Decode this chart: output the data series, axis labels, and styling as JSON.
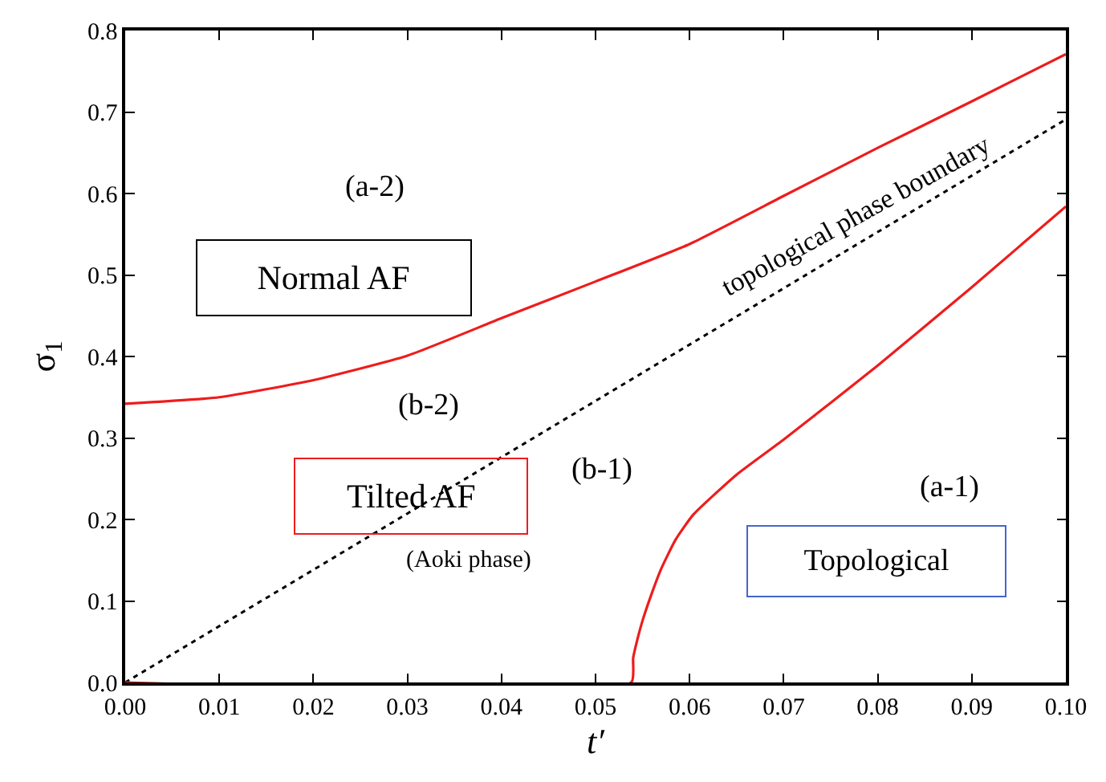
{
  "chart_data": {
    "type": "line",
    "xlabel": "t′",
    "ylabel": "σ$_{1}$",
    "xlim": [
      0.0,
      0.1
    ],
    "ylim": [
      0.0,
      0.8
    ],
    "xticks": [
      {
        "value": 0.0,
        "label": "0.00"
      },
      0.01,
      0.02,
      0.03,
      0.04,
      0.05,
      0.06,
      0.07,
      0.08,
      0.09,
      {
        "value": 0.1,
        "label": "0.10"
      }
    ],
    "yticks": [
      {
        "value": 0.0,
        "label": "0.0"
      },
      0.1,
      0.2,
      0.3,
      0.4,
      0.5,
      0.6,
      0.7,
      0.8
    ],
    "marker": "none",
    "series": [
      {
        "color": "#ee1c1c",
        "line_style": "solid",
        "x": [
          0.0,
          0.01,
          0.02,
          0.03,
          0.04,
          0.05,
          0.06,
          0.07,
          0.08,
          0.09,
          0.1
        ],
        "values": [
          0.342,
          0.35,
          0.371,
          0.401,
          0.447,
          0.492,
          0.538,
          0.597,
          0.656,
          0.713,
          0.771
        ]
      },
      {
        "color": "#000000",
        "line_style": "dotted",
        "x": [
          0.0,
          0.1
        ],
        "values": [
          0.0,
          0.691
        ]
      },
      {
        "color": "#ee1c1c",
        "line_style": "solid",
        "x": [
          0.0,
          0.0538,
          0.054,
          0.0545,
          0.055,
          0.056,
          0.057,
          0.0585,
          0.0604,
          0.065,
          0.07,
          0.08,
          0.09,
          0.1
        ],
        "values": [
          0.0,
          0.0,
          0.03,
          0.055,
          0.076,
          0.11,
          0.14,
          0.175,
          0.206,
          0.255,
          0.298,
          0.389,
          0.485,
          0.584
        ]
      }
    ],
    "annotations": [
      "(a-2)",
      "Normal AF",
      "(b-2)",
      "Tilted AF",
      "(b-1)",
      "(Aoki phase)",
      "(a-1)",
      "Topological",
      "topological phase boundary"
    ]
  }
}
